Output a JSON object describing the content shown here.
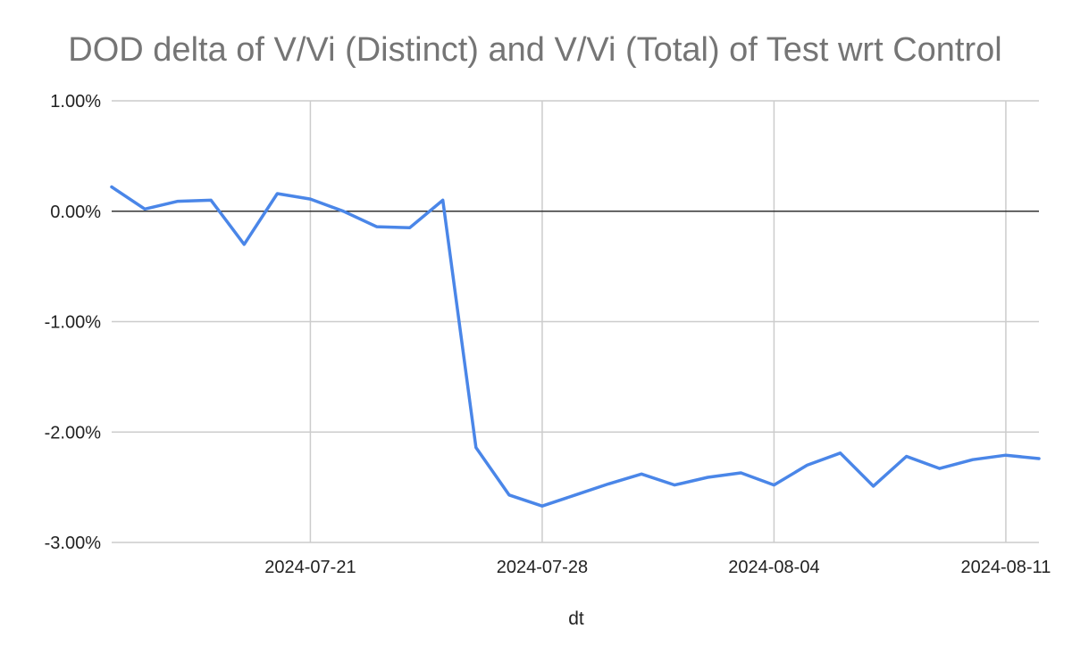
{
  "chart_data": {
    "type": "line",
    "title": "DOD delta of V/Vi (Distinct) and V/Vi (Total) of Test wrt Control",
    "xlabel": "dt",
    "ylabel": "",
    "ylim": [
      -0.03,
      0.01
    ],
    "yticks": [
      0.01,
      0.0,
      -0.01,
      -0.02,
      -0.03
    ],
    "ytick_labels": [
      "1.00%",
      "0.00%",
      "-1.00%",
      "-2.00%",
      "-3.00%"
    ],
    "xlim": [
      "2024-07-15",
      "2024-08-12"
    ],
    "xtick_labels": [
      "2024-07-21",
      "2024-07-28",
      "2024-08-04",
      "2024-08-11"
    ],
    "grid": true,
    "series": [
      {
        "color": "#4a86e8",
        "x": [
          "2024-07-15",
          "2024-07-16",
          "2024-07-17",
          "2024-07-18",
          "2024-07-19",
          "2024-07-20",
          "2024-07-21",
          "2024-07-22",
          "2024-07-23",
          "2024-07-24",
          "2024-07-25",
          "2024-07-26",
          "2024-07-27",
          "2024-07-28",
          "2024-07-29",
          "2024-07-30",
          "2024-07-31",
          "2024-08-01",
          "2024-08-02",
          "2024-08-03",
          "2024-08-04",
          "2024-08-05",
          "2024-08-06",
          "2024-08-07",
          "2024-08-08",
          "2024-08-09",
          "2024-08-10",
          "2024-08-11",
          "2024-08-12"
        ],
        "values": [
          0.0022,
          0.0002,
          0.0009,
          0.001,
          -0.003,
          0.0016,
          0.0011,
          0.0,
          -0.0014,
          -0.0015,
          0.001,
          -0.0214,
          -0.0257,
          -0.0267,
          -0.0257,
          -0.0247,
          -0.0238,
          -0.0248,
          -0.0241,
          -0.0237,
          -0.0248,
          -0.023,
          -0.0219,
          -0.0249,
          -0.0222,
          -0.0233,
          -0.0225,
          -0.0221,
          -0.0224
        ]
      }
    ]
  }
}
